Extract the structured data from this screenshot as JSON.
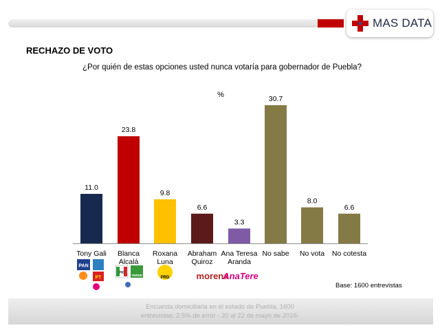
{
  "header": {
    "brand": "MAS DATA"
  },
  "section_title": "RECHAZO DE VOTO",
  "question": "¿Por quién de estas opciones usted nunca votaría para gobernador de Puebla?",
  "base_note": "Base: 1600 entrevistas",
  "footer": {
    "line1": "Encuesta domiciliaria en el estado de Puebla, 1600",
    "line2": "entrevistas: 2.5% de error - 20 al 22 de mayo de 2016-"
  },
  "party_logos": {
    "pan": "PAN",
    "pt": "PT",
    "pri": "PRI",
    "verde": "VERDE",
    "prd": "PRD",
    "morena": "morena",
    "anatere": "AnaTere"
  },
  "chart_data": {
    "type": "bar",
    "unit_label": "%",
    "categories": [
      [
        "Tony Gali"
      ],
      [
        "Blanca",
        "Alcalá"
      ],
      [
        "Roxana",
        "Luna"
      ],
      [
        "Abraham",
        "Quiroz"
      ],
      [
        "Ana Teresa",
        "Aranda"
      ],
      [
        "No sabe"
      ],
      [
        "No vota"
      ],
      [
        "No cotesta"
      ]
    ],
    "values": [
      11.0,
      23.8,
      9.8,
      6.6,
      3.3,
      30.7,
      8.0,
      6.6
    ],
    "value_labels": [
      "11.0",
      "23.8",
      "9.8",
      "6.6",
      "3.3",
      "30.7",
      "8.0",
      "6.6"
    ],
    "colors": [
      "#17294f",
      "#c00000",
      "#ffc000",
      "#5c1a1a",
      "#7f5ba6",
      "#847a45",
      "#847a45",
      "#847a45"
    ],
    "ylim": [
      0,
      30.7
    ]
  }
}
